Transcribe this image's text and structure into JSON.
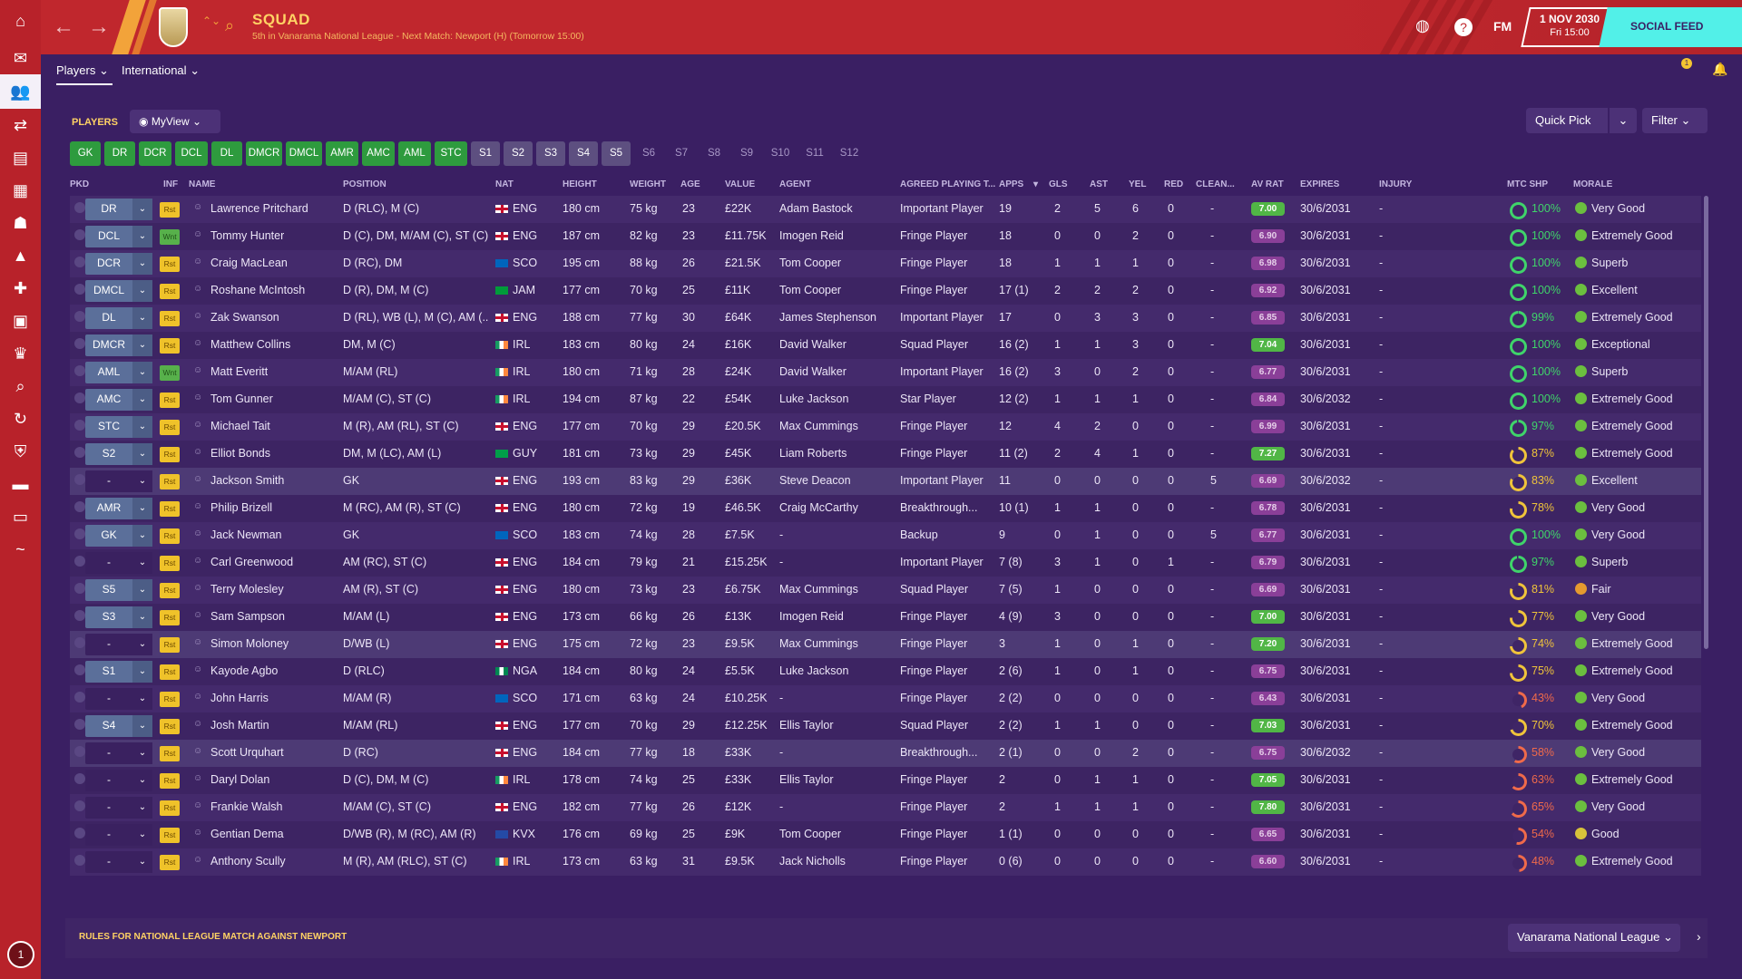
{
  "header": {
    "title": "SQUAD",
    "subtitle": "5th in Vanarama National League - Next Match: Newport (H) (Tomorrow 15:00)",
    "date": "1 NOV 2030",
    "time": "Fri 15:00",
    "fm": "FM",
    "social_feed": "SOCIAL FEED"
  },
  "subnav": {
    "tab1": "Players",
    "tab2": "International",
    "badge": "1"
  },
  "toolbar": {
    "players": "PLAYERS",
    "view": "MyView",
    "quick_pick": "Quick Pick",
    "filter": "Filter"
  },
  "chips": [
    "GK",
    "DR",
    "DCR",
    "DCL",
    "DL",
    "DMCR",
    "DMCL",
    "AMR",
    "AMC",
    "AML",
    "STC",
    "S1",
    "S2",
    "S3",
    "S4",
    "S5",
    "S6",
    "S7",
    "S8",
    "S9",
    "S10",
    "S11",
    "S12"
  ],
  "columns": {
    "pkd": "PKD",
    "inf": "INF",
    "name": "NAME",
    "position": "POSITION",
    "nat": "NAT",
    "height": "HEIGHT",
    "weight": "WEIGHT",
    "age": "AGE",
    "value": "VALUE",
    "agent": "AGENT",
    "playing_time": "AGREED PLAYING T...",
    "apps": "APPS",
    "gls": "GLS",
    "ast": "AST",
    "yel": "YEL",
    "red": "RED",
    "clean": "CLEAN...",
    "av_rat": "AV RAT",
    "expires": "EXPIRES",
    "injury": "INJURY",
    "mtc_shp": "MTC SHP",
    "morale": "MORALE"
  },
  "rows": [
    {
      "sel": "DR",
      "inf": "Rst",
      "name": "Lawrence Pritchard",
      "pos": "D (RLC), M (C)",
      "nat": "ENG",
      "h": "180 cm",
      "w": "75 kg",
      "age": "23",
      "val": "£22K",
      "agent": "Adam Bastock",
      "pt": "Important Player",
      "apps": "19",
      "gls": "2",
      "ast": "5",
      "yel": "6",
      "red": "0",
      "cs": "-",
      "rat": "7.00",
      "exp": "30/6/2031",
      "inj": "-",
      "mtc": "100%",
      "mor": "Very Good"
    },
    {
      "sel": "DCL",
      "inf": "Wnt",
      "name": "Tommy Hunter",
      "pos": "D (C), DM, M/AM (C), ST (C)",
      "nat": "ENG",
      "h": "187 cm",
      "w": "82 kg",
      "age": "23",
      "val": "£11.75K",
      "agent": "Imogen Reid",
      "pt": "Fringe Player",
      "apps": "18",
      "gls": "0",
      "ast": "0",
      "yel": "2",
      "red": "0",
      "cs": "-",
      "rat": "6.90",
      "exp": "30/6/2031",
      "inj": "-",
      "mtc": "100%",
      "mor": "Extremely Good"
    },
    {
      "sel": "DCR",
      "inf": "Rst",
      "name": "Craig MacLean",
      "pos": "D (RC), DM",
      "nat": "SCO",
      "h": "195 cm",
      "w": "88 kg",
      "age": "26",
      "val": "£21.5K",
      "agent": "Tom Cooper",
      "pt": "Fringe Player",
      "apps": "18",
      "gls": "1",
      "ast": "1",
      "yel": "1",
      "red": "0",
      "cs": "-",
      "rat": "6.98",
      "exp": "30/6/2031",
      "inj": "-",
      "mtc": "100%",
      "mor": "Superb"
    },
    {
      "sel": "DMCL",
      "inf": "Rst",
      "name": "Roshane McIntosh",
      "pos": "D (R), DM, M (C)",
      "nat": "JAM",
      "h": "177 cm",
      "w": "70 kg",
      "age": "25",
      "val": "£11K",
      "agent": "Tom Cooper",
      "pt": "Fringe Player",
      "apps": "17 (1)",
      "gls": "2",
      "ast": "2",
      "yel": "2",
      "red": "0",
      "cs": "-",
      "rat": "6.92",
      "exp": "30/6/2031",
      "inj": "-",
      "mtc": "100%",
      "mor": "Excellent"
    },
    {
      "sel": "DL",
      "inf": "Rst",
      "name": "Zak Swanson",
      "pos": "D (RL), WB (L), M (C), AM (...",
      "nat": "ENG",
      "h": "188 cm",
      "w": "77 kg",
      "age": "30",
      "val": "£64K",
      "agent": "James Stephenson",
      "pt": "Important Player",
      "apps": "17",
      "gls": "0",
      "ast": "3",
      "yel": "3",
      "red": "0",
      "cs": "-",
      "rat": "6.85",
      "exp": "30/6/2031",
      "inj": "-",
      "mtc": "99%",
      "mor": "Extremely Good"
    },
    {
      "sel": "DMCR",
      "inf": "Rst",
      "name": "Matthew Collins",
      "pos": "DM, M (C)",
      "nat": "IRL",
      "h": "183 cm",
      "w": "80 kg",
      "age": "24",
      "val": "£16K",
      "agent": "David Walker",
      "pt": "Squad Player",
      "apps": "16 (2)",
      "gls": "1",
      "ast": "1",
      "yel": "3",
      "red": "0",
      "cs": "-",
      "rat": "7.04",
      "exp": "30/6/2031",
      "inj": "-",
      "mtc": "100%",
      "mor": "Exceptional"
    },
    {
      "sel": "AML",
      "inf": "Wnt",
      "name": "Matt Everitt",
      "pos": "M/AM (RL)",
      "nat": "IRL",
      "h": "180 cm",
      "w": "71 kg",
      "age": "28",
      "val": "£24K",
      "agent": "David Walker",
      "pt": "Important Player",
      "apps": "16 (2)",
      "gls": "3",
      "ast": "0",
      "yel": "2",
      "red": "0",
      "cs": "-",
      "rat": "6.77",
      "exp": "30/6/2031",
      "inj": "-",
      "mtc": "100%",
      "mor": "Superb"
    },
    {
      "sel": "AMC",
      "inf": "Rst",
      "name": "Tom Gunner",
      "pos": "M/AM (C), ST (C)",
      "nat": "IRL",
      "h": "194 cm",
      "w": "87 kg",
      "age": "22",
      "val": "£54K",
      "agent": "Luke Jackson",
      "pt": "Star Player",
      "apps": "12 (2)",
      "gls": "1",
      "ast": "1",
      "yel": "1",
      "red": "0",
      "cs": "-",
      "rat": "6.84",
      "exp": "30/6/2032",
      "inj": "-",
      "mtc": "100%",
      "mor": "Extremely Good"
    },
    {
      "sel": "STC",
      "inf": "Rst",
      "name": "Michael Tait",
      "pos": "M (R), AM (RL), ST (C)",
      "nat": "ENG",
      "h": "177 cm",
      "w": "70 kg",
      "age": "29",
      "val": "£20.5K",
      "agent": "Max Cummings",
      "pt": "Fringe Player",
      "apps": "12",
      "gls": "4",
      "ast": "2",
      "yel": "0",
      "red": "0",
      "cs": "-",
      "rat": "6.99",
      "exp": "30/6/2031",
      "inj": "-",
      "mtc": "97%",
      "mor": "Extremely Good"
    },
    {
      "sel": "S2",
      "inf": "Rst",
      "name": "Elliot Bonds",
      "pos": "DM, M (LC), AM (L)",
      "nat": "GUY",
      "h": "181 cm",
      "w": "73 kg",
      "age": "29",
      "val": "£45K",
      "agent": "Liam Roberts",
      "pt": "Fringe Player",
      "apps": "11 (2)",
      "gls": "2",
      "ast": "4",
      "yel": "1",
      "red": "0",
      "cs": "-",
      "rat": "7.27",
      "exp": "30/6/2031",
      "inj": "-",
      "mtc": "87%",
      "mor": "Extremely Good"
    },
    {
      "sel": "-",
      "inf": "Rst",
      "name": "Jackson Smith",
      "pos": "GK",
      "nat": "ENG",
      "h": "193 cm",
      "w": "83 kg",
      "age": "29",
      "val": "£36K",
      "agent": "Steve Deacon",
      "pt": "Important Player",
      "apps": "11",
      "gls": "0",
      "ast": "0",
      "yel": "0",
      "red": "0",
      "cs": "5",
      "rat": "6.69",
      "exp": "30/6/2032",
      "inj": "-",
      "mtc": "83%",
      "mor": "Excellent"
    },
    {
      "sel": "AMR",
      "inf": "Rst",
      "name": "Philip Brizell",
      "pos": "M (RC), AM (R), ST (C)",
      "nat": "ENG",
      "h": "180 cm",
      "w": "72 kg",
      "age": "19",
      "val": "£46.5K",
      "agent": "Craig McCarthy",
      "pt": "Breakthrough...",
      "apps": "10 (1)",
      "gls": "1",
      "ast": "1",
      "yel": "0",
      "red": "0",
      "cs": "-",
      "rat": "6.78",
      "exp": "30/6/2031",
      "inj": "-",
      "mtc": "78%",
      "mor": "Very Good"
    },
    {
      "sel": "GK",
      "inf": "Rst",
      "name": "Jack Newman",
      "pos": "GK",
      "nat": "SCO",
      "h": "183 cm",
      "w": "74 kg",
      "age": "28",
      "val": "£7.5K",
      "agent": "-",
      "pt": "Backup",
      "apps": "9",
      "gls": "0",
      "ast": "1",
      "yel": "0",
      "red": "0",
      "cs": "5",
      "rat": "6.77",
      "exp": "30/6/2031",
      "inj": "-",
      "mtc": "100%",
      "mor": "Very Good"
    },
    {
      "sel": "-",
      "inf": "Rst",
      "name": "Carl Greenwood",
      "pos": "AM (RC), ST (C)",
      "nat": "ENG",
      "h": "184 cm",
      "w": "79 kg",
      "age": "21",
      "val": "£15.25K",
      "agent": "-",
      "pt": "Important Player",
      "apps": "7 (8)",
      "gls": "3",
      "ast": "1",
      "yel": "0",
      "red": "1",
      "cs": "-",
      "rat": "6.79",
      "exp": "30/6/2031",
      "inj": "-",
      "mtc": "97%",
      "mor": "Superb"
    },
    {
      "sel": "S5",
      "inf": "Rst",
      "name": "Terry Molesley",
      "pos": "AM (R), ST (C)",
      "nat": "ENG",
      "h": "180 cm",
      "w": "73 kg",
      "age": "23",
      "val": "£6.75K",
      "agent": "Max Cummings",
      "pt": "Squad Player",
      "apps": "7 (5)",
      "gls": "1",
      "ast": "0",
      "yel": "0",
      "red": "0",
      "cs": "-",
      "rat": "6.69",
      "exp": "30/6/2031",
      "inj": "-",
      "mtc": "81%",
      "mor": "Fair"
    },
    {
      "sel": "S3",
      "inf": "Rst",
      "name": "Sam Sampson",
      "pos": "M/AM (L)",
      "nat": "ENG",
      "h": "173 cm",
      "w": "66 kg",
      "age": "26",
      "val": "£13K",
      "agent": "Imogen Reid",
      "pt": "Fringe Player",
      "apps": "4 (9)",
      "gls": "3",
      "ast": "0",
      "yel": "0",
      "red": "0",
      "cs": "-",
      "rat": "7.00",
      "exp": "30/6/2031",
      "inj": "-",
      "mtc": "77%",
      "mor": "Very Good"
    },
    {
      "sel": "-",
      "inf": "Rst",
      "name": "Simon Moloney",
      "pos": "D/WB (L)",
      "nat": "ENG",
      "h": "175 cm",
      "w": "72 kg",
      "age": "23",
      "val": "£9.5K",
      "agent": "Max Cummings",
      "pt": "Fringe Player",
      "apps": "3",
      "gls": "1",
      "ast": "0",
      "yel": "1",
      "red": "0",
      "cs": "-",
      "rat": "7.20",
      "exp": "30/6/2031",
      "inj": "-",
      "mtc": "74%",
      "mor": "Extremely Good"
    },
    {
      "sel": "S1",
      "inf": "Rst",
      "name": "Kayode Agbo",
      "pos": "D (RLC)",
      "nat": "NGA",
      "h": "184 cm",
      "w": "80 kg",
      "age": "24",
      "val": "£5.5K",
      "agent": "Luke Jackson",
      "pt": "Fringe Player",
      "apps": "2 (6)",
      "gls": "1",
      "ast": "0",
      "yel": "1",
      "red": "0",
      "cs": "-",
      "rat": "6.75",
      "exp": "30/6/2031",
      "inj": "-",
      "mtc": "75%",
      "mor": "Extremely Good"
    },
    {
      "sel": "-",
      "inf": "Rst",
      "name": "John Harris",
      "pos": "M/AM (R)",
      "nat": "SCO",
      "h": "171 cm",
      "w": "63 kg",
      "age": "24",
      "val": "£10.25K",
      "agent": "-",
      "pt": "Fringe Player",
      "apps": "2 (2)",
      "gls": "0",
      "ast": "0",
      "yel": "0",
      "red": "0",
      "cs": "-",
      "rat": "6.43",
      "exp": "30/6/2031",
      "inj": "-",
      "mtc": "43%",
      "mor": "Very Good"
    },
    {
      "sel": "S4",
      "inf": "Rst",
      "name": "Josh Martin",
      "pos": "M/AM (RL)",
      "nat": "ENG",
      "h": "177 cm",
      "w": "70 kg",
      "age": "29",
      "val": "£12.25K",
      "agent": "Ellis Taylor",
      "pt": "Squad Player",
      "apps": "2 (2)",
      "gls": "1",
      "ast": "1",
      "yel": "0",
      "red": "0",
      "cs": "-",
      "rat": "7.03",
      "exp": "30/6/2031",
      "inj": "-",
      "mtc": "70%",
      "mor": "Extremely Good"
    },
    {
      "sel": "-",
      "inf": "Rst",
      "name": "Scott Urquhart",
      "pos": "D (RC)",
      "nat": "ENG",
      "h": "184 cm",
      "w": "77 kg",
      "age": "18",
      "val": "£33K",
      "agent": "-",
      "pt": "Breakthrough...",
      "apps": "2 (1)",
      "gls": "0",
      "ast": "0",
      "yel": "2",
      "red": "0",
      "cs": "-",
      "rat": "6.75",
      "exp": "30/6/2032",
      "inj": "-",
      "mtc": "58%",
      "mor": "Very Good"
    },
    {
      "sel": "-",
      "inf": "Rst",
      "name": "Daryl Dolan",
      "pos": "D (C), DM, M (C)",
      "nat": "IRL",
      "h": "178 cm",
      "w": "74 kg",
      "age": "25",
      "val": "£33K",
      "agent": "Ellis Taylor",
      "pt": "Fringe Player",
      "apps": "2",
      "gls": "0",
      "ast": "1",
      "yel": "1",
      "red": "0",
      "cs": "-",
      "rat": "7.05",
      "exp": "30/6/2031",
      "inj": "-",
      "mtc": "63%",
      "mor": "Extremely Good"
    },
    {
      "sel": "-",
      "inf": "Rst",
      "name": "Frankie Walsh",
      "pos": "M/AM (C), ST (C)",
      "nat": "ENG",
      "h": "182 cm",
      "w": "77 kg",
      "age": "26",
      "val": "£12K",
      "agent": "-",
      "pt": "Fringe Player",
      "apps": "2",
      "gls": "1",
      "ast": "1",
      "yel": "1",
      "red": "0",
      "cs": "-",
      "rat": "7.80",
      "exp": "30/6/2031",
      "inj": "-",
      "mtc": "65%",
      "mor": "Very Good"
    },
    {
      "sel": "-",
      "inf": "Rst",
      "name": "Gentian Dema",
      "pos": "D/WB (R), M (RC), AM (R)",
      "nat": "KVX",
      "h": "176 cm",
      "w": "69 kg",
      "age": "25",
      "val": "£9K",
      "agent": "Tom Cooper",
      "pt": "Fringe Player",
      "apps": "1 (1)",
      "gls": "0",
      "ast": "0",
      "yel": "0",
      "red": "0",
      "cs": "-",
      "rat": "6.65",
      "exp": "30/6/2031",
      "inj": "-",
      "mtc": "54%",
      "mor": "Good"
    },
    {
      "sel": "-",
      "inf": "Rst",
      "name": "Anthony Scully",
      "pos": "M (R), AM (RLC), ST (C)",
      "nat": "IRL",
      "h": "173 cm",
      "w": "63 kg",
      "age": "31",
      "val": "£9.5K",
      "agent": "Jack Nicholls",
      "pt": "Fringe Player",
      "apps": "0 (6)",
      "gls": "0",
      "ast": "0",
      "yel": "0",
      "red": "0",
      "cs": "-",
      "rat": "6.60",
      "exp": "30/6/2031",
      "inj": "-",
      "mtc": "48%",
      "mor": "Extremely Good"
    }
  ],
  "bottom": {
    "rules": "RULES FOR NATIONAL LEAGUE MATCH AGAINST NEWPORT",
    "league": "Vanarama National League"
  },
  "colors": {
    "accent_red": "#c0272d",
    "bg_purple": "#3a1f63",
    "title_yellow": "#ffd264",
    "social_cyan": "#52f0e8",
    "chip_green": "#2e9b3e"
  }
}
